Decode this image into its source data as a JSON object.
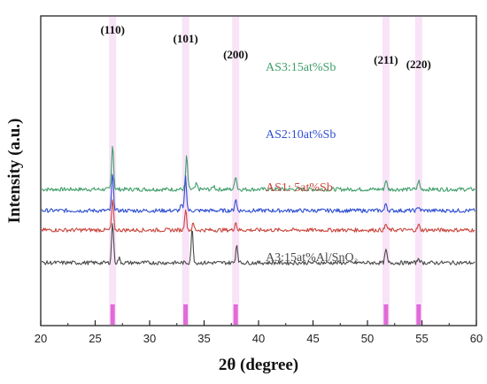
{
  "chart_data": {
    "type": "line",
    "xlabel": "2θ (degree)",
    "ylabel": "Intensity (a.u.)",
    "xlim": [
      20,
      60
    ],
    "xticks": [
      20,
      25,
      30,
      35,
      40,
      45,
      50,
      55,
      60
    ],
    "yticks_shown": false,
    "grid": false,
    "reference_peaks": [
      26.6,
      33.3,
      37.9,
      51.7,
      54.7
    ],
    "reference_bar_color": "#e06ad8",
    "reference_band_color": "#f6d9f4",
    "peak_labels": [
      {
        "text": "(110)",
        "x": 26.6
      },
      {
        "text": "(101)",
        "x": 33.3
      },
      {
        "text": "(200)",
        "x": 37.9
      },
      {
        "text": "(211)",
        "x": 51.7
      },
      {
        "text": "(220)",
        "x": 54.7
      }
    ],
    "series": [
      {
        "name": "AS3:15at%Sb",
        "color": "#3f9e6a",
        "baseline": 0.83,
        "peaks": [
          [
            26.6,
            0.52
          ],
          [
            33.4,
            0.37
          ],
          [
            34.3,
            0.06
          ],
          [
            35.9,
            0.04
          ],
          [
            37.9,
            0.16
          ],
          [
            51.7,
            0.11
          ],
          [
            54.7,
            0.1
          ]
        ]
      },
      {
        "name": "AS2:10at%Sb",
        "color": "#2f4fd1",
        "baseline": 0.59,
        "peaks": [
          [
            26.6,
            0.41
          ],
          [
            33.3,
            0.38
          ],
          [
            32.9,
            0.06
          ],
          [
            37.9,
            0.13
          ],
          [
            51.7,
            0.08
          ],
          [
            54.7,
            0.05
          ]
        ]
      },
      {
        "name": "AS1:  5at%Sb",
        "color": "#c9463d",
        "baseline": 0.37,
        "peaks": [
          [
            26.6,
            0.33
          ],
          [
            33.3,
            0.24
          ],
          [
            34.0,
            0.07
          ],
          [
            37.9,
            0.09
          ],
          [
            51.7,
            0.07
          ],
          [
            54.7,
            0.06
          ]
        ]
      },
      {
        "name": "A3:15at%Al/SnO₂",
        "color": "#4a4a4a",
        "baseline": 0.0,
        "peaks": [
          [
            26.6,
            0.46
          ],
          [
            27.2,
            0.05
          ],
          [
            33.9,
            0.38
          ],
          [
            38.0,
            0.21
          ],
          [
            51.7,
            0.15
          ],
          [
            54.7,
            0.06
          ]
        ]
      }
    ]
  }
}
